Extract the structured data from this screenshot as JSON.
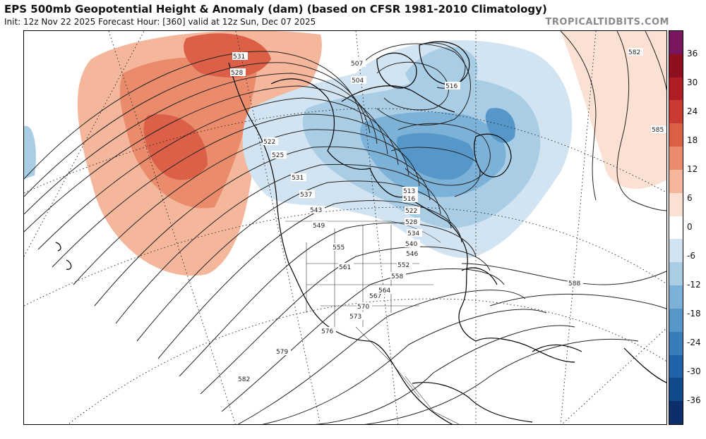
{
  "header": {
    "title": "EPS 500mb Geopotential Height & Anomaly (dam) (based on CFSR 1981-2010 Climatology)",
    "subtitle": "Init: 12z Nov 22 2025   Forecast Hour: [360]   valid at 12z Sun, Dec 07 2025",
    "brand": "TROPICALTIDBITS.COM"
  },
  "colorbar": {
    "labels": [
      "36",
      "30",
      "24",
      "18",
      "12",
      "6",
      "0",
      "-6",
      "-12",
      "-18",
      "-24",
      "-30",
      "-36"
    ],
    "colors": [
      "#7a1560",
      "#8e0f1d",
      "#b01d25",
      "#c93a32",
      "#db6047",
      "#ea8c6c",
      "#f5b79b",
      "#fbe1d3",
      "#ffffff",
      "#d2e4f1",
      "#aacde6",
      "#7db2d8",
      "#5597c8",
      "#377dba",
      "#1f63a8",
      "#124a8c",
      "#0c2f6b"
    ]
  },
  "map": {
    "contour_labels": {
      "c507": "507",
      "c504": "504",
      "c516a": "516",
      "c522": "522",
      "c525": "525",
      "c528a": "528",
      "c531a": "531",
      "c531b": "531",
      "c537": "537",
      "c543": "543",
      "c549": "549",
      "c555": "555",
      "c561": "561",
      "c567": "567",
      "c573": "573",
      "c576": "576",
      "c579": "579",
      "c582a": "582",
      "c582b": "582",
      "c585": "585",
      "c588": "588",
      "c513": "513",
      "c516b": "516",
      "c522b": "522",
      "c528b": "528",
      "c534": "534",
      "c540": "540",
      "c546": "546",
      "c552": "552",
      "c558": "558",
      "c564": "564",
      "c570": "570"
    }
  }
}
